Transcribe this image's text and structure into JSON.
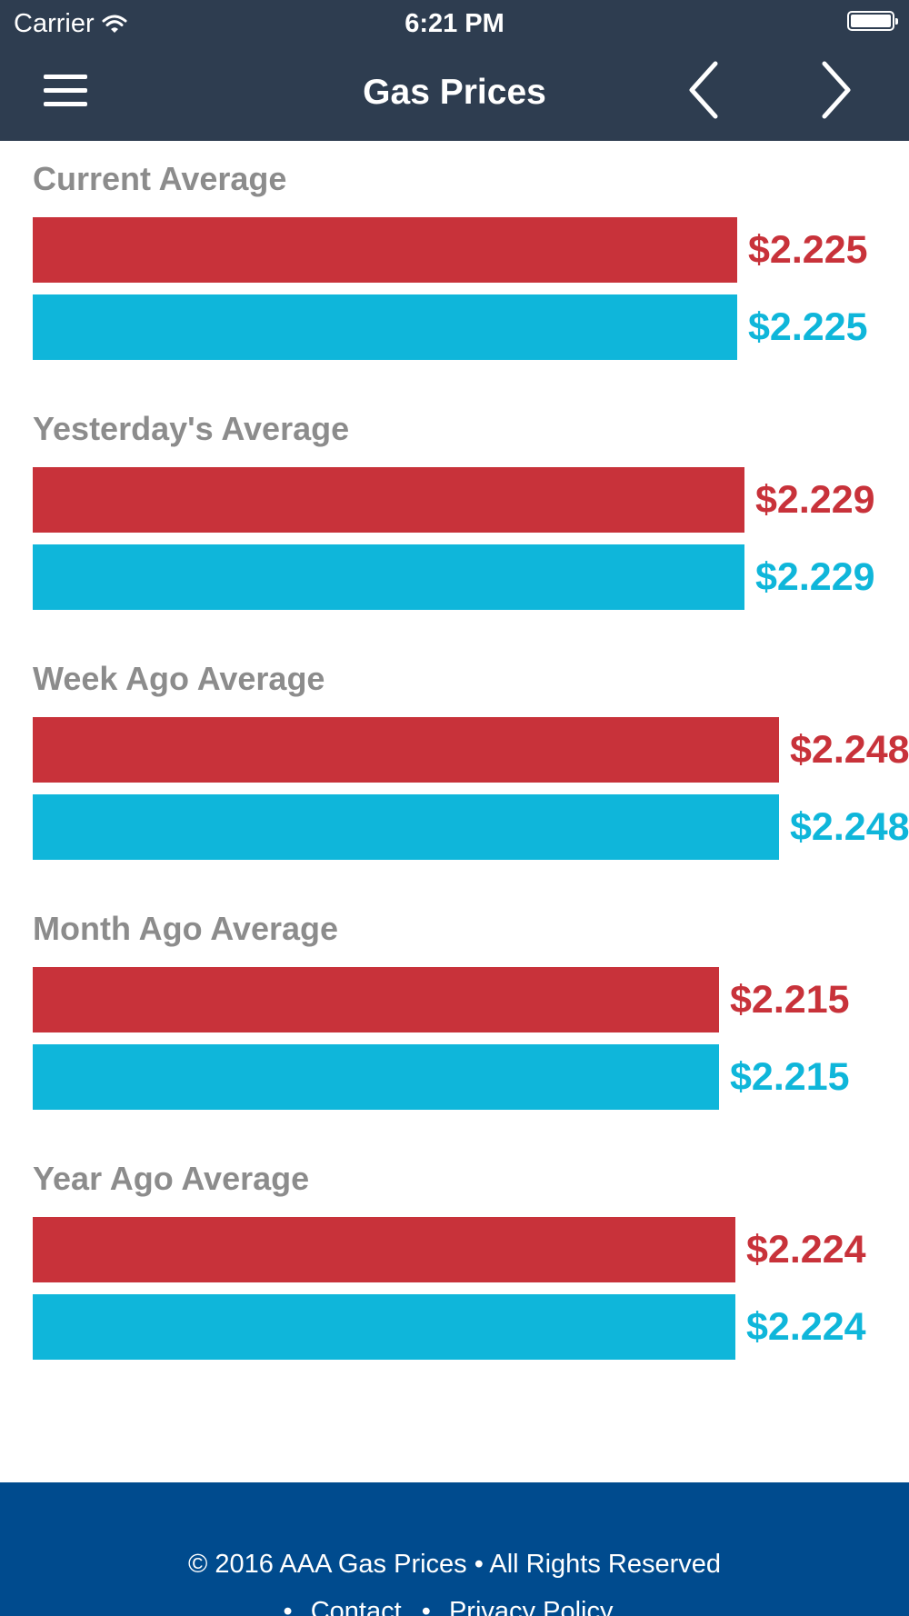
{
  "status_bar": {
    "carrier": "Carrier",
    "time": "6:21 PM"
  },
  "nav": {
    "title": "Gas Prices"
  },
  "colors": {
    "header": "#2e3d50",
    "red_series": "#c8323a",
    "blue_series": "#0fb6da",
    "footer": "#004b8e",
    "section_label": "#8c8c8c"
  },
  "icons": {
    "menu": "hamburger-menu-icon",
    "prev": "chevron-left-icon",
    "next": "chevron-right-icon",
    "wifi": "wifi-icon",
    "battery": "battery-icon"
  },
  "sections": [
    {
      "title": "Current Average",
      "red_price": "$2.225",
      "blue_price": "$2.225"
    },
    {
      "title": "Yesterday's Average",
      "red_price": "$2.229",
      "blue_price": "$2.229"
    },
    {
      "title": "Week Ago Average",
      "red_price": "$2.248",
      "blue_price": "$2.248"
    },
    {
      "title": "Month Ago Average",
      "red_price": "$2.215",
      "blue_price": "$2.215"
    },
    {
      "title": "Year Ago Average",
      "red_price": "$2.224",
      "blue_price": "$2.224"
    }
  ],
  "chart_data": {
    "type": "bar",
    "categories": [
      "Current Average",
      "Yesterday's Average",
      "Week Ago Average",
      "Month Ago Average",
      "Year Ago Average"
    ],
    "series": [
      {
        "values": [
          2.225,
          2.229,
          2.248,
          2.215,
          2.224
        ]
      },
      {
        "values": [
          2.225,
          2.229,
          2.248,
          2.215,
          2.224
        ]
      }
    ],
    "orientation": "horizontal"
  },
  "footer": {
    "copyright": "© 2016 AAA Gas Prices • All Rights Reserved",
    "bullet": "•",
    "links": [
      "Contact",
      "Privacy Policy"
    ]
  }
}
